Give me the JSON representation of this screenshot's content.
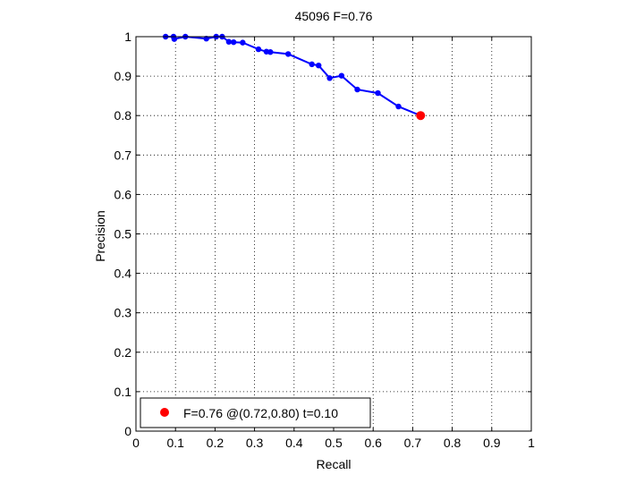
{
  "chart_data": {
    "type": "line",
    "title": "45096 F=0.76",
    "xlabel": "Recall",
    "ylabel": "Precision",
    "xlim": [
      0,
      1
    ],
    "ylim": [
      0,
      1
    ],
    "xticks": [
      "0",
      "0.1",
      "0.2",
      "0.3",
      "0.4",
      "0.5",
      "0.6",
      "0.7",
      "0.8",
      "0.9",
      "1"
    ],
    "yticks": [
      "0",
      "0.1",
      "0.2",
      "0.3",
      "0.4",
      "0.5",
      "0.6",
      "0.7",
      "0.8",
      "0.9",
      "1"
    ],
    "grid": true,
    "grid_style": "dotted",
    "series": [
      {
        "color": "#0000ff",
        "marker": "dot",
        "x": [
          0.075,
          0.095,
          0.097,
          0.125,
          0.178,
          0.203,
          0.218,
          0.235,
          0.247,
          0.27,
          0.31,
          0.33,
          0.34,
          0.385,
          0.445,
          0.462,
          0.49,
          0.52,
          0.56,
          0.612,
          0.664,
          0.72
        ],
        "y": [
          1.0,
          1.0,
          0.994,
          1.0,
          0.995,
          1.0,
          1.0,
          0.987,
          0.986,
          0.985,
          0.968,
          0.962,
          0.961,
          0.956,
          0.93,
          0.927,
          0.895,
          0.901,
          0.866,
          0.857,
          0.823,
          0.8
        ]
      }
    ],
    "highlight": {
      "x": 0.72,
      "y": 0.8,
      "color": "#ff0000"
    },
    "legend": {
      "position": "bottom-left",
      "label": "F=0.76 @(0.72,0.80) t=0.10"
    }
  }
}
